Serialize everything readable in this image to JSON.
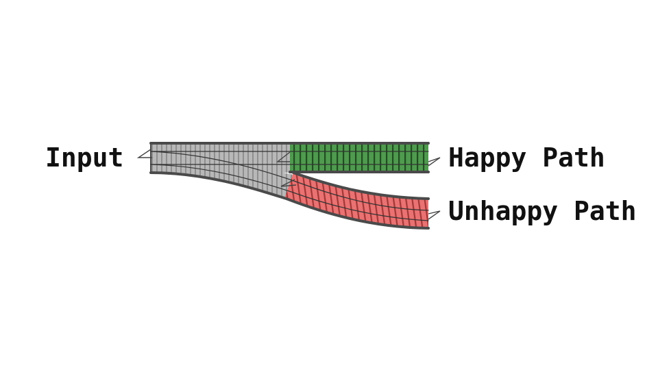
{
  "labels": {
    "input": "Input",
    "happy": "Happy Path",
    "unhappy": "Unhappy Path"
  },
  "colors": {
    "input_track": "#b3b3b3",
    "happy_track": "#4f9a4f",
    "unhappy_track": "#e86b6b",
    "rail": "#555555",
    "tie": "#6e6e6e"
  }
}
